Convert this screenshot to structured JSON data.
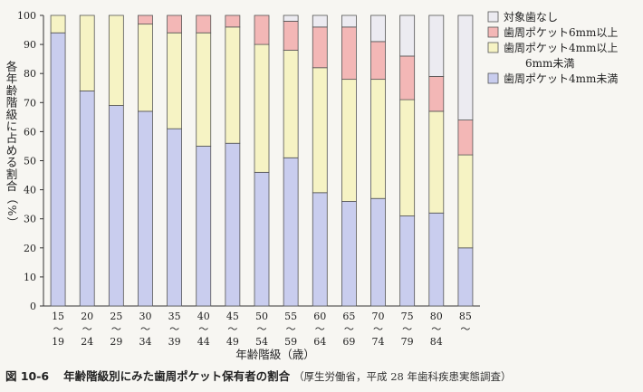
{
  "chart_data": {
    "type": "bar",
    "stacked": true,
    "categories": [
      [
        "15",
        "〜",
        "19"
      ],
      [
        "20",
        "〜",
        "24"
      ],
      [
        "25",
        "〜",
        "29"
      ],
      [
        "30",
        "〜",
        "34"
      ],
      [
        "35",
        "〜",
        "39"
      ],
      [
        "40",
        "〜",
        "44"
      ],
      [
        "45",
        "〜",
        "49"
      ],
      [
        "50",
        "〜",
        "54"
      ],
      [
        "55",
        "〜",
        "59"
      ],
      [
        "60",
        "〜",
        "64"
      ],
      [
        "65",
        "〜",
        "69"
      ],
      [
        "70",
        "〜",
        "74"
      ],
      [
        "75",
        "〜",
        "79"
      ],
      [
        "80",
        "〜",
        "84"
      ],
      [
        "85",
        "〜"
      ]
    ],
    "series": [
      {
        "name": "歯周ポケット4mm未満",
        "color": "#c9cdee",
        "values": [
          94,
          74,
          69,
          67,
          61,
          55,
          56,
          46,
          51,
          39,
          36,
          37,
          31,
          32,
          20
        ]
      },
      {
        "name": "歯周ポケット4mm以上 6mm未満",
        "color": "#f6f3c4",
        "values": [
          6,
          26,
          31,
          30,
          33,
          39,
          40,
          44,
          37,
          43,
          42,
          41,
          40,
          35,
          32
        ]
      },
      {
        "name": "歯周ポケット6mm以上",
        "color": "#f3b7b6",
        "values": [
          0,
          0,
          0,
          3,
          6,
          6,
          4,
          10,
          10,
          14,
          18,
          13,
          15,
          12,
          12
        ]
      },
      {
        "name": "対象歯なし",
        "color": "#ecebf1",
        "values": [
          0,
          0,
          0,
          0,
          0,
          0,
          0,
          0,
          2,
          4,
          4,
          9,
          14,
          21,
          36
        ]
      }
    ],
    "legend": {
      "position": "top-right",
      "entries": [
        {
          "series": 3,
          "lines": [
            "対象歯なし"
          ]
        },
        {
          "series": 2,
          "lines": [
            "歯周ポケット6mm以上"
          ]
        },
        {
          "series": 1,
          "lines": [
            "歯周ポケット4mm以上",
            "6mm未満"
          ]
        },
        {
          "series": 0,
          "lines": [
            "歯周ポケット4mm未満"
          ]
        }
      ]
    },
    "ylim": [
      0,
      100
    ],
    "yticks": [
      0,
      10,
      20,
      30,
      40,
      50,
      60,
      70,
      80,
      90,
      100
    ],
    "ylabel": "各年齢階級に占める割合（%）",
    "xlabel": "年齢階級（歳）",
    "grid": false
  },
  "caption": {
    "figure": "図 10-6",
    "title": "年齢階級別にみた歯周ポケット保有者の割合",
    "source": "（厚生労働省，平成 28 年歯科疾患実態調査）"
  }
}
